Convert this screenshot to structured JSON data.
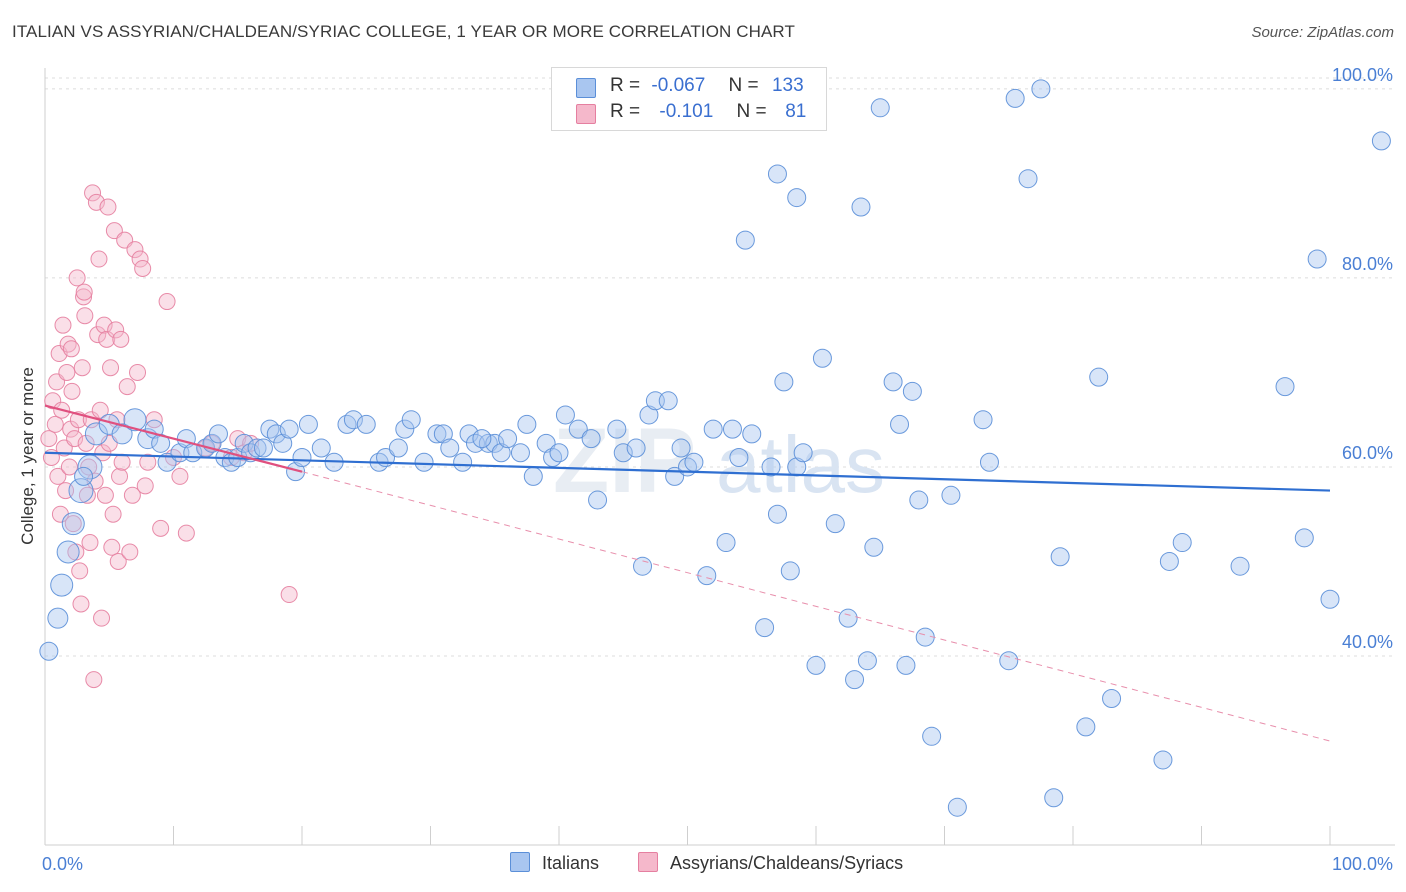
{
  "title": "ITALIAN VS ASSYRIAN/CHALDEAN/SYRIAC COLLEGE, 1 YEAR OR MORE CORRELATION CHART",
  "source": "Source: ZipAtlas.com",
  "watermark": "ZIPatlas",
  "legend": {
    "rows": [
      {
        "r_label": "R =",
        "r_value": "-0.067",
        "n_label": "N =",
        "n_value": "133",
        "color": "#a9c6f0",
        "border": "#5b8fd8"
      },
      {
        "r_label": "R =",
        "r_value": "-0.101",
        "n_label": "N =",
        "n_value": " 81",
        "color": "#f5b8cb",
        "border": "#e57fa0"
      }
    ]
  },
  "bottom_legend": [
    {
      "label": "Italians",
      "color": "#a9c6f0",
      "border": "#5b8fd8"
    },
    {
      "label": "Assyrians/Chaldeans/Syriacs",
      "color": "#f5b8cb",
      "border": "#e57fa0"
    }
  ],
  "chart_data": {
    "type": "scatter",
    "title": "ITALIAN VS ASSYRIAN/CHALDEAN/SYRIAC COLLEGE, 1 YEAR OR MORE CORRELATION CHART",
    "xlabel": "",
    "ylabel": "College, 1 year or more",
    "xlim": [
      0,
      100
    ],
    "ylim": [
      20,
      102
    ],
    "x_tick_labels": [
      "0.0%",
      "100.0%"
    ],
    "y_ticks": [
      40,
      60,
      80,
      100
    ],
    "y_tick_labels": [
      "40.0%",
      "60.0%",
      "80.0%",
      "100.0%"
    ],
    "grid": true,
    "series": [
      {
        "name": "Italians",
        "color": "#a9c6f0",
        "stroke": "#5b8fd8",
        "trend": {
          "x0": 0,
          "y0": 61.5,
          "x1": 100,
          "y1": 57.5,
          "color": "#2f6fd1"
        },
        "points": [
          [
            0.3,
            40.5,
            9
          ],
          [
            1,
            44,
            10
          ],
          [
            1.3,
            47.5,
            11
          ],
          [
            1.8,
            51,
            11
          ],
          [
            2.2,
            54,
            11
          ],
          [
            2.8,
            57.5,
            12
          ],
          [
            3.5,
            60,
            12
          ],
          [
            3,
            59,
            9
          ],
          [
            4,
            63.5,
            11
          ],
          [
            5,
            64.5,
            10
          ],
          [
            6,
            63.5,
            10
          ],
          [
            7,
            65,
            11
          ],
          [
            8,
            63,
            10
          ],
          [
            8.5,
            64,
            9
          ],
          [
            9,
            62.5,
            9
          ],
          [
            9.5,
            60.5,
            9
          ],
          [
            10.5,
            61.5,
            9
          ],
          [
            11,
            63,
            9
          ],
          [
            11.5,
            61.5,
            9
          ],
          [
            12.5,
            62,
            9
          ],
          [
            13,
            62.5,
            9
          ],
          [
            13.5,
            63.5,
            9
          ],
          [
            14,
            61,
            9
          ],
          [
            14.5,
            60.5,
            9
          ],
          [
            15,
            61,
            9
          ],
          [
            15.5,
            62.5,
            9
          ],
          [
            16,
            61.5,
            9
          ],
          [
            16.5,
            62,
            9
          ],
          [
            17,
            62,
            9
          ],
          [
            17.5,
            64,
            9
          ],
          [
            18,
            63.5,
            9
          ],
          [
            18.5,
            62.5,
            9
          ],
          [
            19,
            64,
            9
          ],
          [
            19.5,
            59.5,
            9
          ],
          [
            20,
            61,
            9
          ],
          [
            20.5,
            64.5,
            9
          ],
          [
            21.5,
            62,
            9
          ],
          [
            22.5,
            60.5,
            9
          ],
          [
            23.5,
            64.5,
            9
          ],
          [
            24,
            65,
            9
          ],
          [
            25,
            64.5,
            9
          ],
          [
            26,
            60.5,
            9
          ],
          [
            26.5,
            61,
            9
          ],
          [
            27.5,
            62,
            9
          ],
          [
            28,
            64,
            9
          ],
          [
            28.5,
            65,
            9
          ],
          [
            29.5,
            60.5,
            9
          ],
          [
            30.5,
            63.5,
            9
          ],
          [
            31,
            63.5,
            9
          ],
          [
            31.5,
            62,
            9
          ],
          [
            32.5,
            60.5,
            9
          ],
          [
            33,
            63.5,
            9
          ],
          [
            33.5,
            62.5,
            9
          ],
          [
            34.5,
            62.5,
            9
          ],
          [
            35,
            62.5,
            9
          ],
          [
            35.5,
            61.5,
            9
          ],
          [
            36,
            63,
            9
          ],
          [
            37,
            61.5,
            9
          ],
          [
            37.5,
            64.5,
            9
          ],
          [
            38,
            59,
            9
          ],
          [
            39,
            62.5,
            9
          ],
          [
            39.5,
            61,
            9
          ],
          [
            40,
            61.5,
            9
          ],
          [
            40.5,
            65.5,
            9
          ],
          [
            41.5,
            64,
            9
          ],
          [
            42.5,
            63,
            9
          ],
          [
            43,
            56.5,
            9
          ],
          [
            44.5,
            64,
            9
          ],
          [
            45,
            61.5,
            9
          ],
          [
            46,
            62,
            9
          ],
          [
            47,
            65.5,
            9
          ],
          [
            47.5,
            67,
            9
          ],
          [
            48.5,
            67,
            9
          ],
          [
            49,
            59,
            9
          ],
          [
            49.5,
            62,
            9
          ],
          [
            50,
            60,
            9
          ],
          [
            50.5,
            60.5,
            9
          ],
          [
            51.5,
            48.5,
            9
          ],
          [
            52,
            64,
            9
          ],
          [
            53,
            52,
            9
          ],
          [
            53.5,
            64,
            9
          ],
          [
            54,
            61,
            9
          ],
          [
            55,
            63.5,
            9
          ],
          [
            56,
            43,
            9
          ],
          [
            56.5,
            60,
            9
          ],
          [
            57,
            55,
            9
          ],
          [
            57.5,
            69,
            9
          ],
          [
            58,
            49,
            9
          ],
          [
            58.5,
            60,
            9
          ],
          [
            59,
            61.5,
            9
          ],
          [
            60,
            39,
            9
          ],
          [
            60.5,
            71.5,
            9
          ],
          [
            61.5,
            54,
            9
          ],
          [
            62.5,
            44,
            9
          ],
          [
            63,
            37.5,
            9
          ],
          [
            64,
            39.5,
            9
          ],
          [
            64.5,
            51.5,
            9
          ],
          [
            66,
            69,
            9
          ],
          [
            66.5,
            64.5,
            9
          ],
          [
            67,
            39,
            9
          ],
          [
            67.5,
            68,
            9
          ],
          [
            68,
            56.5,
            9
          ],
          [
            68.5,
            42,
            9
          ],
          [
            69,
            31.5,
            9
          ],
          [
            70.5,
            57,
            9
          ],
          [
            71,
            24,
            9
          ],
          [
            73.5,
            60.5,
            9
          ],
          [
            75,
            39.5,
            9
          ],
          [
            76.5,
            90.5,
            9
          ],
          [
            77.5,
            100,
            9
          ],
          [
            78.5,
            25,
            9
          ],
          [
            79,
            50.5,
            9
          ],
          [
            81,
            32.5,
            9
          ],
          [
            82,
            69.5,
            9
          ],
          [
            83,
            35.5,
            9
          ],
          [
            87,
            29,
            9
          ],
          [
            87.5,
            50,
            9
          ],
          [
            88.5,
            52,
            9
          ],
          [
            93,
            49.5,
            9
          ],
          [
            96.5,
            68.5,
            9
          ],
          [
            98,
            52.5,
            9
          ],
          [
            99,
            82,
            9
          ],
          [
            100,
            46,
            9
          ],
          [
            104,
            94.5,
            9
          ],
          [
            57,
            91,
            9
          ],
          [
            58.5,
            88.5,
            9
          ],
          [
            63.5,
            87.5,
            9
          ],
          [
            54.5,
            84,
            9
          ],
          [
            65,
            98,
            9
          ],
          [
            75.5,
            99,
            9
          ],
          [
            73,
            65,
            9
          ],
          [
            46.5,
            49.5,
            9
          ],
          [
            34,
            63,
            9
          ]
        ]
      },
      {
        "name": "Assyrians/Chaldeans/Syriacs",
        "color": "#f5b8cb",
        "stroke": "#e57fa0",
        "trend_solid": {
          "x0": 0,
          "y0": 66.5,
          "x1": 20,
          "y1": 59.5,
          "color": "#e0507f"
        },
        "trend_dashed": {
          "x0": 20,
          "y0": 59.5,
          "x1": 100,
          "y1": 31,
          "color": "#e88fac"
        },
        "points": [
          [
            0.3,
            63,
            8
          ],
          [
            0.5,
            61,
            8
          ],
          [
            0.6,
            67,
            8
          ],
          [
            0.8,
            64.5,
            8
          ],
          [
            0.9,
            69,
            8
          ],
          [
            1,
            59,
            8
          ],
          [
            1.1,
            72,
            8
          ],
          [
            1.2,
            55,
            8
          ],
          [
            1.3,
            66,
            8
          ],
          [
            1.5,
            62,
            8
          ],
          [
            1.6,
            57.5,
            8
          ],
          [
            1.7,
            70,
            8
          ],
          [
            1.8,
            73,
            8
          ],
          [
            1.9,
            60,
            8
          ],
          [
            2,
            64,
            8
          ],
          [
            2.1,
            68,
            8
          ],
          [
            2.2,
            54,
            8
          ],
          [
            2.3,
            63,
            8
          ],
          [
            2.4,
            51,
            8
          ],
          [
            2.5,
            80,
            8
          ],
          [
            2.6,
            65,
            8
          ],
          [
            2.7,
            49,
            8
          ],
          [
            2.8,
            45.5,
            8
          ],
          [
            2.9,
            70.5,
            8
          ],
          [
            3,
            78,
            8
          ],
          [
            3.1,
            76,
            8
          ],
          [
            3.2,
            62.5,
            8
          ],
          [
            3.3,
            57,
            8
          ],
          [
            3.4,
            60,
            8
          ],
          [
            3.5,
            52,
            8
          ],
          [
            3.6,
            65,
            8
          ],
          [
            3.7,
            89,
            8
          ],
          [
            3.8,
            37.5,
            8
          ],
          [
            3.9,
            58.5,
            8
          ],
          [
            4,
            88,
            8
          ],
          [
            4.1,
            74,
            8
          ],
          [
            4.2,
            82,
            8
          ],
          [
            4.3,
            66,
            8
          ],
          [
            4.4,
            44,
            8
          ],
          [
            4.5,
            61.5,
            8
          ],
          [
            4.6,
            75,
            8
          ],
          [
            4.7,
            57,
            8
          ],
          [
            4.8,
            73.5,
            8
          ],
          [
            4.9,
            87.5,
            8
          ],
          [
            5,
            62.5,
            8
          ],
          [
            5.1,
            70.5,
            8
          ],
          [
            5.2,
            51.5,
            8
          ],
          [
            5.3,
            55,
            8
          ],
          [
            5.4,
            85,
            8
          ],
          [
            5.5,
            74.5,
            8
          ],
          [
            5.6,
            65,
            8
          ],
          [
            5.7,
            50,
            8
          ],
          [
            5.8,
            59,
            8
          ],
          [
            5.9,
            73.5,
            8
          ],
          [
            6,
            60.5,
            8
          ],
          [
            6.2,
            84,
            8
          ],
          [
            6.4,
            68.5,
            8
          ],
          [
            6.6,
            51,
            8
          ],
          [
            6.8,
            57,
            8
          ],
          [
            7,
            83,
            8
          ],
          [
            7.2,
            70,
            8
          ],
          [
            7.4,
            82,
            8
          ],
          [
            7.6,
            81,
            8
          ],
          [
            7.8,
            58,
            8
          ],
          [
            8,
            60.5,
            8
          ],
          [
            8.5,
            65,
            8
          ],
          [
            9,
            53.5,
            8
          ],
          [
            9.5,
            77.5,
            8
          ],
          [
            10,
            61,
            8
          ],
          [
            10.5,
            59,
            8
          ],
          [
            11,
            53,
            8
          ],
          [
            12.5,
            62,
            8
          ],
          [
            13,
            62.5,
            8
          ],
          [
            14.5,
            61,
            8
          ],
          [
            15,
            63,
            8
          ],
          [
            15.5,
            61.5,
            8
          ],
          [
            16,
            62.5,
            8
          ],
          [
            19,
            46.5,
            8
          ],
          [
            1.4,
            75,
            8
          ],
          [
            2.05,
            72.5,
            8
          ],
          [
            3.05,
            78.5,
            8
          ]
        ]
      }
    ]
  }
}
